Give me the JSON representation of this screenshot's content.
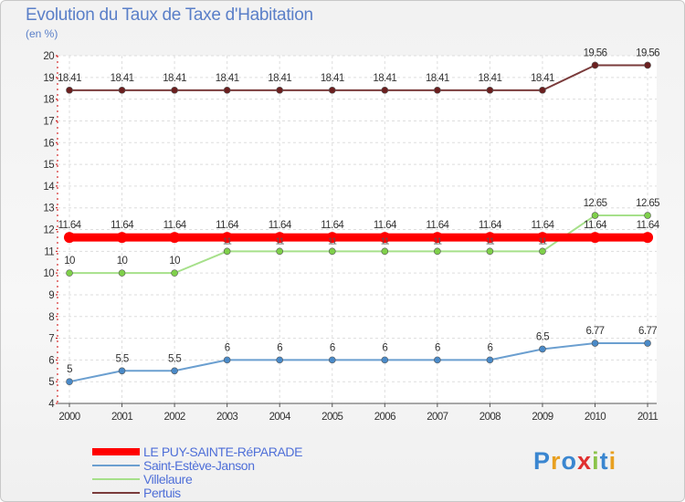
{
  "chart_data": {
    "type": "line",
    "title": "Evolution du Taux de Taxe d'Habitation",
    "subtitle": "(en %)",
    "x": [
      "2000",
      "2001",
      "2002",
      "2003",
      "2004",
      "2005",
      "2006",
      "2007",
      "2008",
      "2009",
      "2010",
      "2011"
    ],
    "ylim": [
      4,
      20
    ],
    "yticks": [
      "4",
      "5",
      "6",
      "7",
      "8",
      "9",
      "10",
      "11",
      "12",
      "13",
      "14",
      "15",
      "16",
      "17",
      "18",
      "19",
      "20"
    ],
    "series": [
      {
        "name": "Pertuis",
        "color": "#7a3b3b",
        "dot": "#6b1f1f",
        "values": [
          18.41,
          18.41,
          18.41,
          18.41,
          18.41,
          18.41,
          18.41,
          18.41,
          18.41,
          18.41,
          19.56,
          19.56
        ],
        "labels": [
          "18.41",
          "18.41",
          "18.41",
          "18.41",
          "18.41",
          "18.41",
          "18.41",
          "18.41",
          "18.41",
          "18.41",
          "19.56",
          "19.56"
        ]
      },
      {
        "name": "Villelaure",
        "color": "#a6e08a",
        "dot": "#7fd04a",
        "values": [
          10,
          10,
          10,
          11,
          11,
          11,
          11,
          11,
          11,
          11,
          12.65,
          12.65
        ],
        "labels": [
          "10",
          "10",
          "10",
          "",
          "",
          "",
          "",
          "",
          "",
          "",
          "12.65",
          "12.65"
        ]
      },
      {
        "name": "LE PUY-SAINTE-RéPARADE",
        "color": "#ff0000",
        "dot": "#ff0000",
        "values": [
          11.64,
          11.64,
          11.64,
          11.64,
          11.64,
          11.64,
          11.64,
          11.64,
          11.64,
          11.64,
          11.64,
          11.64
        ],
        "labels": [
          "11.64",
          "11.64",
          "11.64",
          "11.64",
          "11.64",
          "11.64",
          "11.64",
          "11.64",
          "11.64",
          "11.64",
          "11.64",
          "11.64"
        ]
      },
      {
        "name": "Saint-Estève-Janson",
        "color": "#6b9fd0",
        "dot": "#4a8ac8",
        "values": [
          5,
          5.5,
          5.5,
          6,
          6,
          6,
          6,
          6,
          6,
          6.5,
          6.77,
          6.77
        ],
        "labels": [
          "5",
          "5.5",
          "5.5",
          "6",
          "6",
          "6",
          "6",
          "6",
          "6",
          "6.5",
          "6.77",
          "6.77"
        ]
      }
    ],
    "hidden_labels": [
      "11",
      "11",
      "11",
      "11",
      "11",
      "11",
      "11"
    ]
  },
  "legend": {
    "items": [
      {
        "label": "LE PUY-SAINTE-RéPARADE",
        "color": "#ff0000"
      },
      {
        "label": "Saint-Estève-Janson",
        "color": "#6b9fd0"
      },
      {
        "label": "Villelaure",
        "color": "#a6e08a"
      },
      {
        "label": "Pertuis",
        "color": "#7a3b3b"
      }
    ]
  },
  "brand": {
    "text": "Proxiti"
  }
}
